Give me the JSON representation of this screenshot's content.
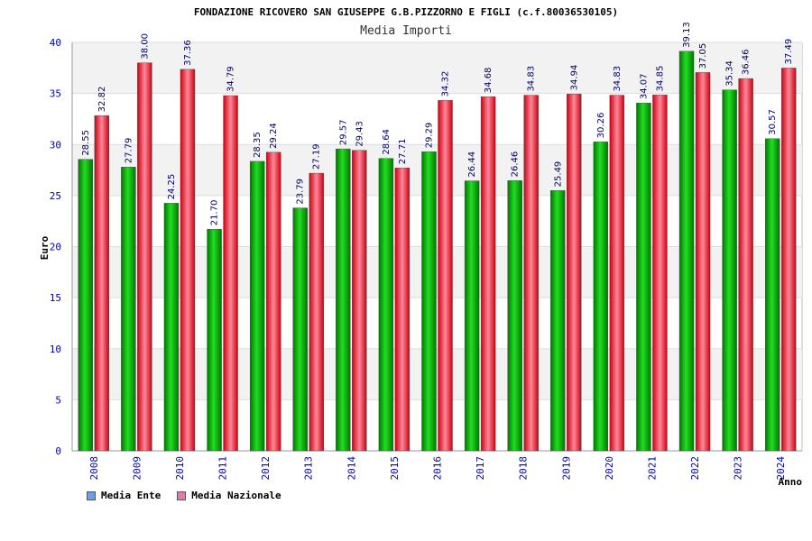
{
  "chart_data": {
    "type": "bar",
    "title": "FONDAZIONE RICOVERO SAN GIUSEPPE G.B.PIZZORNO E FIGLI (c.f.80036530105)",
    "subtitle": "Media Importi",
    "xlabel": "Anno",
    "ylabel": "Euro",
    "ylim": [
      0,
      40
    ],
    "yticks": [
      0,
      5,
      10,
      15,
      20,
      25,
      30,
      35,
      40
    ],
    "grid": true,
    "legend_position": "bottom-left",
    "categories": [
      "2008",
      "2009",
      "2010",
      "2011",
      "2012",
      "2013",
      "2014",
      "2015",
      "2016",
      "2017",
      "2018",
      "2019",
      "2020",
      "2021",
      "2022",
      "2023",
      "2024"
    ],
    "series": [
      {
        "name": "Media Ente",
        "legend_color": "#66a3e0",
        "color": "#00aa00",
        "values": [
          28.55,
          27.79,
          24.25,
          21.7,
          28.35,
          23.79,
          29.57,
          28.64,
          29.29,
          26.44,
          26.46,
          25.49,
          30.26,
          34.07,
          39.13,
          35.34,
          30.57
        ],
        "labels": [
          "28.55",
          "27.79",
          "24.25",
          "21.70",
          "28.35",
          "23.79",
          "29.57",
          "28.64",
          "29.29",
          "26.44",
          "26.46",
          "25.49",
          "30.26",
          "34.07",
          "39.13",
          "35.34",
          "30.57"
        ]
      },
      {
        "name": "Media Nazionale",
        "legend_color": "#e07aa8",
        "color": "#ee2233",
        "values": [
          32.82,
          38.0,
          37.36,
          34.79,
          29.24,
          27.19,
          29.43,
          27.71,
          34.32,
          34.68,
          34.83,
          34.94,
          34.83,
          34.85,
          37.05,
          36.46,
          37.49
        ],
        "labels": [
          "32.82",
          "38.00",
          "37.36",
          "34.79",
          "29.24",
          "27.19",
          "29.43",
          "27.71",
          "34.32",
          "34.68",
          "34.83",
          "34.94",
          "34.83",
          "34.85",
          "37.05",
          "36.46",
          "37.49"
        ]
      }
    ]
  }
}
